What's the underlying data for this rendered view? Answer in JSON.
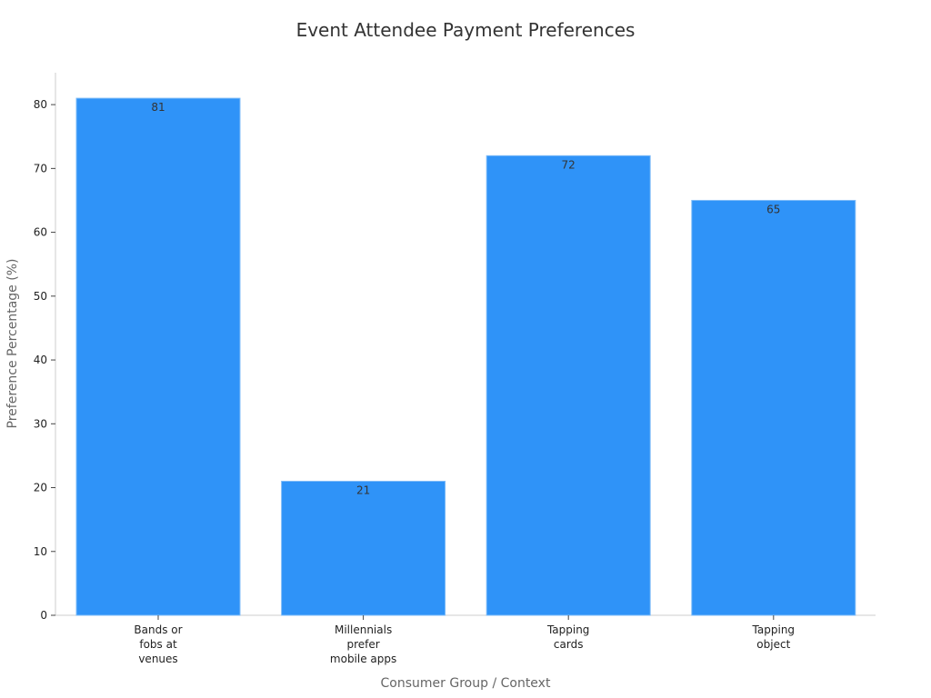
{
  "chart_data": {
    "type": "bar",
    "title": "Event Attendee Payment Preferences",
    "xlabel": "Consumer Group / Context",
    "ylabel": "Preference Percentage (%)",
    "categories": [
      "Bands or\nfobs at\nvenues",
      "Millennials\nprefer\nmobile apps",
      "Tapping\ncards",
      "Tapping\nobject"
    ],
    "values": [
      81,
      21,
      72,
      65
    ],
    "ylim": [
      0,
      85
    ],
    "yticks": [
      0,
      10,
      20,
      30,
      40,
      50,
      60,
      70,
      80
    ],
    "bar_color": "#2f93f8",
    "grid": false,
    "legend": "none"
  }
}
